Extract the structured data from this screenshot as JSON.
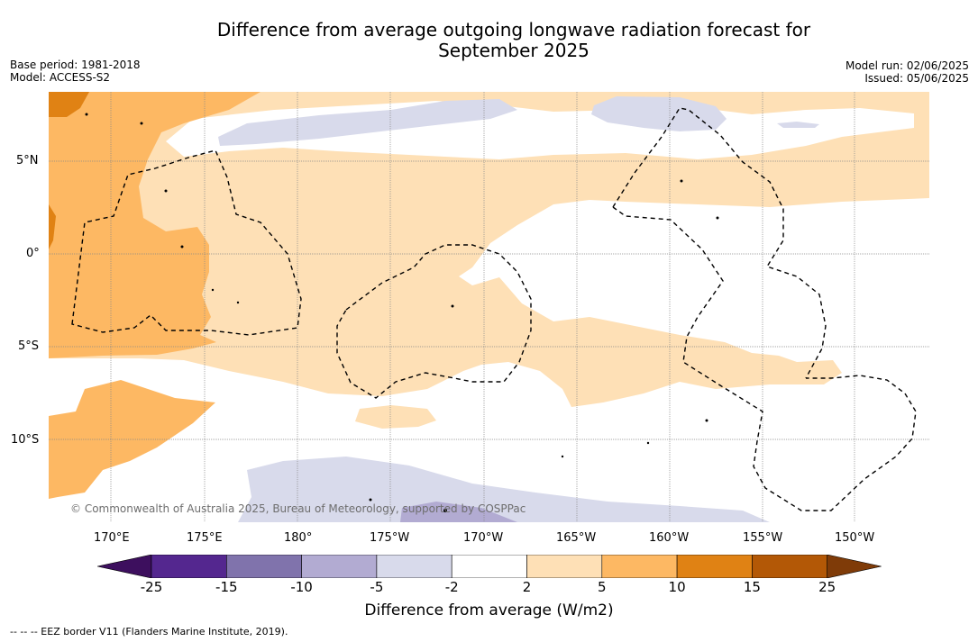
{
  "title_line1": "Difference from average outgoing longwave radiation forecast for",
  "title_line2": "September 2025",
  "base_period": "Base period: 1981-2018",
  "model": "Model: ACCESS-S2",
  "model_run": "Model run: 02/06/2025",
  "issued": "Issued: 05/06/2025",
  "lat_labels": [
    "5°N",
    "0°",
    "5°S",
    "10°S"
  ],
  "lon_labels": [
    "170°E",
    "175°E",
    "180°",
    "175°W",
    "170°W",
    "165°W",
    "160°W",
    "155°W",
    "150°W"
  ],
  "colorbar": {
    "ticks": [
      "-25",
      "-15",
      "-10",
      "-5",
      "-2",
      "2",
      "5",
      "10",
      "15",
      "25"
    ],
    "colors": [
      "#3d0f5e",
      "#54278f",
      "#8073ac",
      "#b2abd2",
      "#d8daeb",
      "#ffffff",
      "#fee0b6",
      "#fdb863",
      "#e08214",
      "#b35806",
      "#7f3b08"
    ],
    "label": "Difference from average (W/m2)"
  },
  "copyright": "© Commonwealth of Australia 2025, Bureau of Meteorology, supported by COSPPac",
  "footnote": "--  --  -- EEZ border V11 (Flanders Marine Institute, 2019)."
}
